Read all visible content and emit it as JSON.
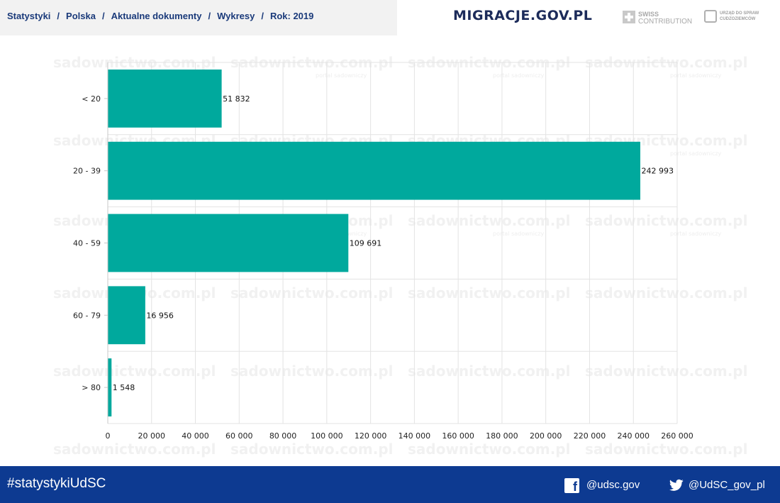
{
  "breadcrumb": [
    "Statystyki",
    "Polska",
    "Aktualne dokumenty",
    "Wykresy",
    "Rok: 2019"
  ],
  "brand": "MIGRACJE.GOV.PL",
  "logos": {
    "swiss_line1": "SWISS",
    "swiss_line2": "CONTRIBUTION",
    "udsc": "URZĄD DO SPRAW CUDZOZIEMCÓW"
  },
  "watermark": {
    "text": "sadownictwo.com.pl",
    "subtext": "portal sadowniczy"
  },
  "chart_data": {
    "type": "bar",
    "orientation": "horizontal",
    "categories": [
      "< 20",
      "20 - 39",
      "40 - 59",
      "60 - 79",
      "> 80"
    ],
    "values": [
      51832,
      242993,
      109691,
      16956,
      1548
    ],
    "value_labels": [
      "51 832",
      "242 993",
      "109 691",
      "16 956",
      "1 548"
    ],
    "x_ticks": [
      "0",
      "20 000",
      "40 000",
      "60 000",
      "80 000",
      "100 000",
      "120 000",
      "140 000",
      "160 000",
      "180 000",
      "200 000",
      "220 000",
      "240 000",
      "260 000"
    ],
    "xlim": [
      0,
      260000
    ],
    "grid": true,
    "bar_color": "#00a99d"
  },
  "footer": {
    "hashtag": "#statystykiUdSC",
    "facebook": "@udsc.gov",
    "twitter": "@UdSC_gov_pl"
  },
  "colors": {
    "footer_bg": "#0d3a91",
    "breadcrumb_text": "#1a3a7a",
    "brand": "#1c2b5a"
  }
}
